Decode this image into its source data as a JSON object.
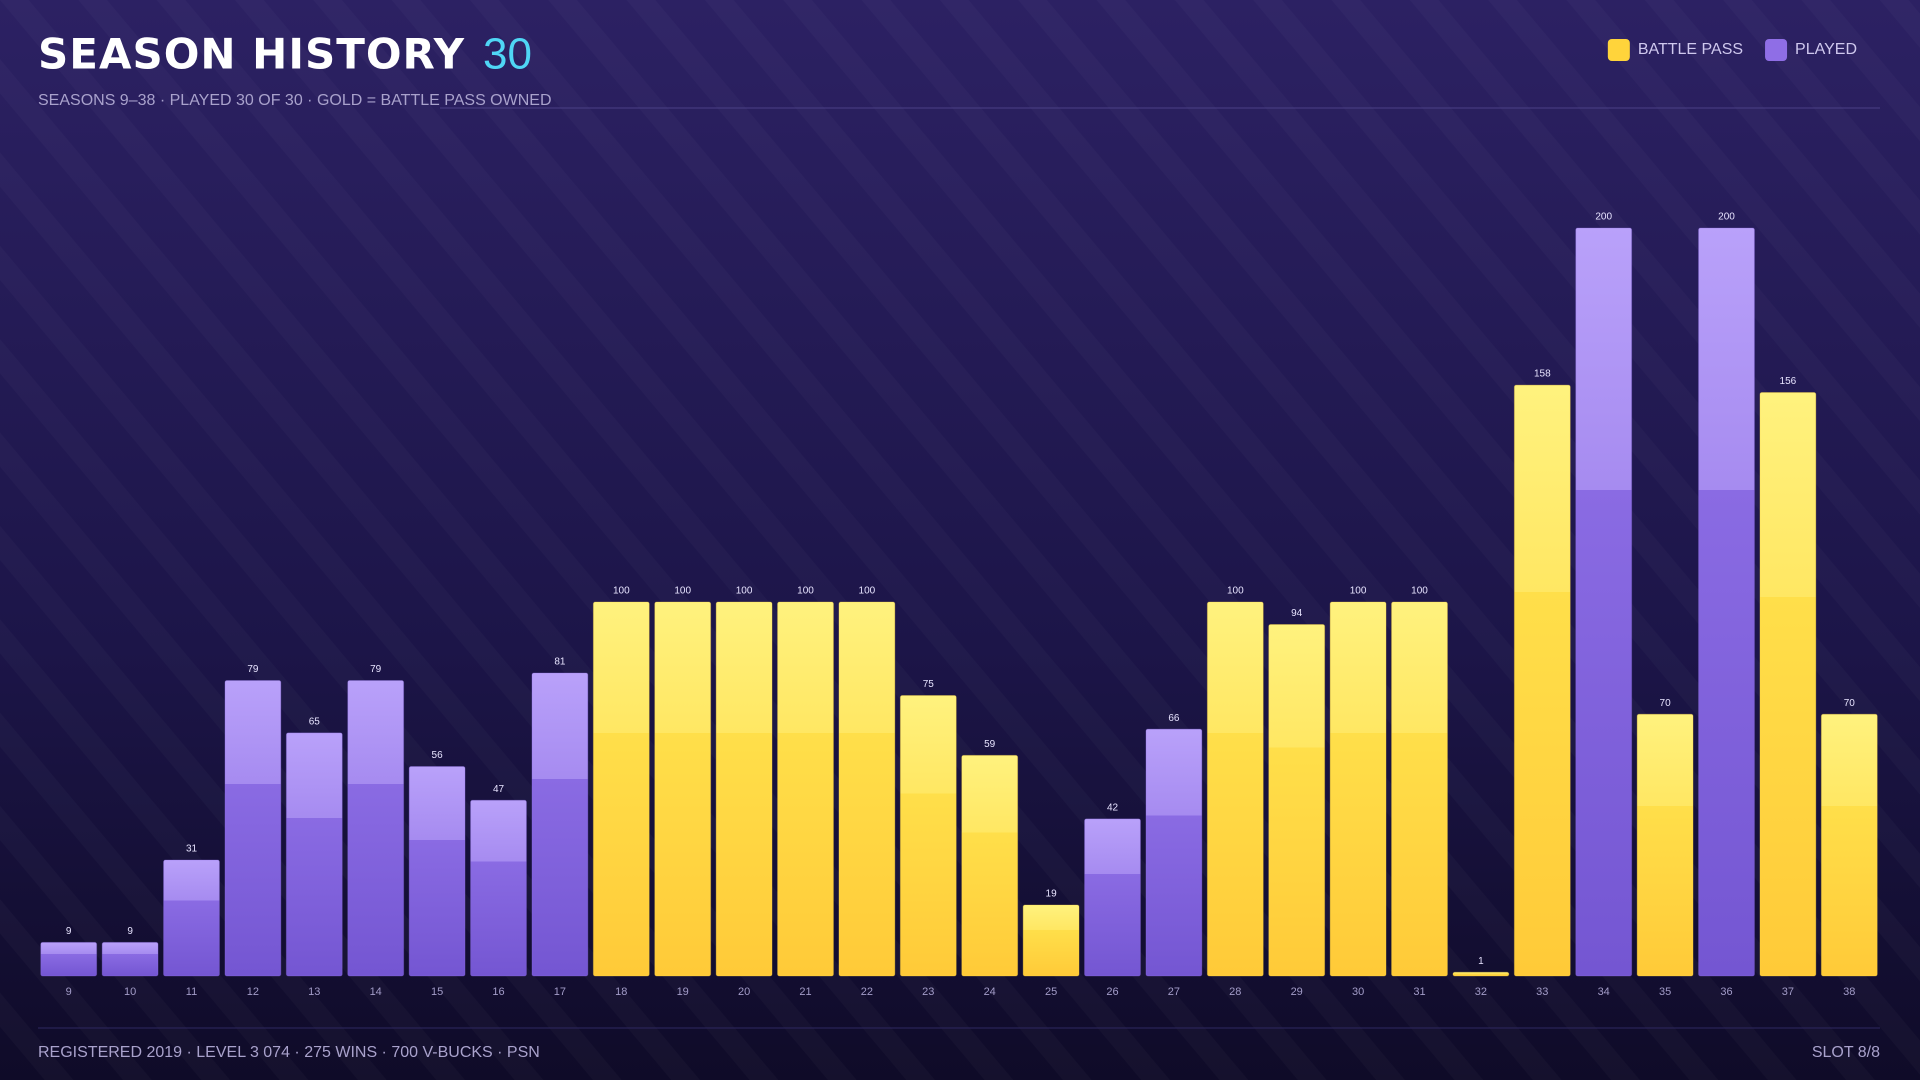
{
  "chart_data": {
    "type": "bar",
    "title": "SEASON HISTORY",
    "title_count": "30",
    "subtitle": "SEASONS 9–38  ·  PLAYED 30 OF 30  ·  GOLD = BATTLE PASS OWNED",
    "categories": [
      "9",
      "10",
      "11",
      "12",
      "13",
      "14",
      "15",
      "16",
      "17",
      "18",
      "19",
      "20",
      "21",
      "22",
      "23",
      "24",
      "25",
      "26",
      "27",
      "28",
      "29",
      "30",
      "31",
      "32",
      "33",
      "34",
      "35",
      "36",
      "37",
      "38"
    ],
    "series": [
      {
        "name": "BATTLE PASS",
        "color": "#ffd43b",
        "values": [
          null,
          null,
          null,
          null,
          null,
          null,
          null,
          null,
          null,
          100,
          100,
          100,
          100,
          100,
          75,
          59,
          19,
          null,
          null,
          100,
          94,
          100,
          100,
          1,
          158,
          null,
          70,
          null,
          156,
          70
        ]
      },
      {
        "name": "PLAYED",
        "color": "#8f6ee6",
        "values": [
          9,
          9,
          31,
          79,
          65,
          79,
          56,
          47,
          81,
          null,
          null,
          null,
          null,
          null,
          null,
          null,
          null,
          42,
          66,
          null,
          null,
          null,
          null,
          null,
          null,
          200,
          null,
          200,
          null,
          null
        ]
      }
    ],
    "legend": "top-right",
    "footer": {
      "left": "REGISTERED 2019  ·  LEVEL 3 074  ·  275 WINS  ·  700 V-BUCKS  ·  PSN",
      "right": "SLOT 8/8"
    }
  }
}
